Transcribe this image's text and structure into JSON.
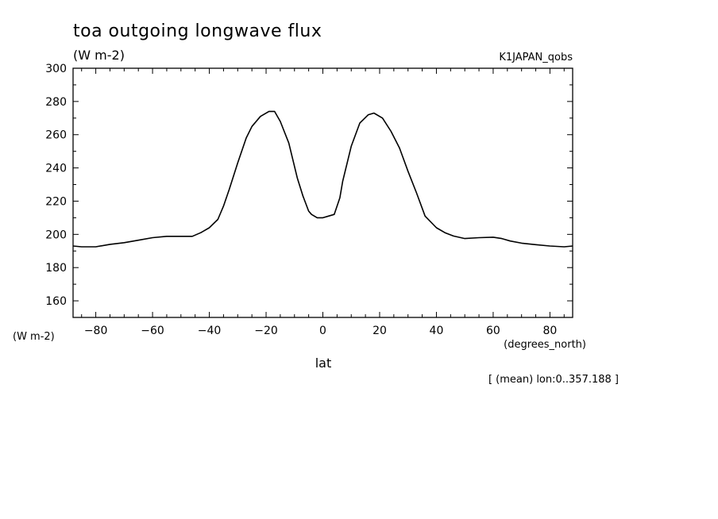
{
  "chart_data": {
    "type": "line",
    "title": "toa outgoing longwave flux",
    "subtitle": "(W m-2)",
    "dataset": "K1JAPAN_qobs",
    "ylabel": "(W m-2)",
    "xlabel": "lat",
    "xunits": "(degrees_north)",
    "footnote": "[ (mean) lon:0..357.188 ]",
    "xlim": [
      -88,
      88
    ],
    "ylim": [
      150,
      300
    ],
    "xticks": [
      -80,
      -60,
      -40,
      -20,
      0,
      20,
      40,
      60,
      80
    ],
    "yticks": [
      160,
      180,
      200,
      220,
      240,
      260,
      280,
      300
    ],
    "grid": false,
    "series": [
      {
        "x": [
          -88,
          -85,
          -80,
          -75,
          -70,
          -65,
          -60,
          -55,
          -50,
          -46,
          -43,
          -40,
          -37,
          -35,
          -33,
          -30,
          -27,
          -25,
          -22,
          -19,
          -17,
          -15,
          -12,
          -9,
          -7,
          -5,
          -4,
          -2,
          0,
          2,
          4,
          6,
          7,
          10,
          13,
          16,
          18,
          21,
          24,
          27,
          30,
          33,
          36,
          40,
          43,
          46,
          50,
          55,
          60,
          63,
          66,
          70,
          75,
          80,
          85,
          88
        ],
        "y": [
          193,
          192.5,
          192.5,
          194,
          195,
          196.5,
          198,
          198.8,
          198.8,
          198.8,
          201,
          204,
          209,
          217,
          227,
          243,
          258,
          265,
          271,
          274,
          274,
          268,
          255,
          234,
          223,
          214,
          212,
          210,
          210,
          211,
          212,
          222,
          232,
          253,
          267,
          272,
          273,
          270,
          262,
          252,
          238,
          225,
          211,
          204,
          201,
          199,
          197.5,
          198,
          198.3,
          197.5,
          196,
          194.7,
          193.8,
          193,
          192.5,
          193
        ]
      }
    ]
  }
}
